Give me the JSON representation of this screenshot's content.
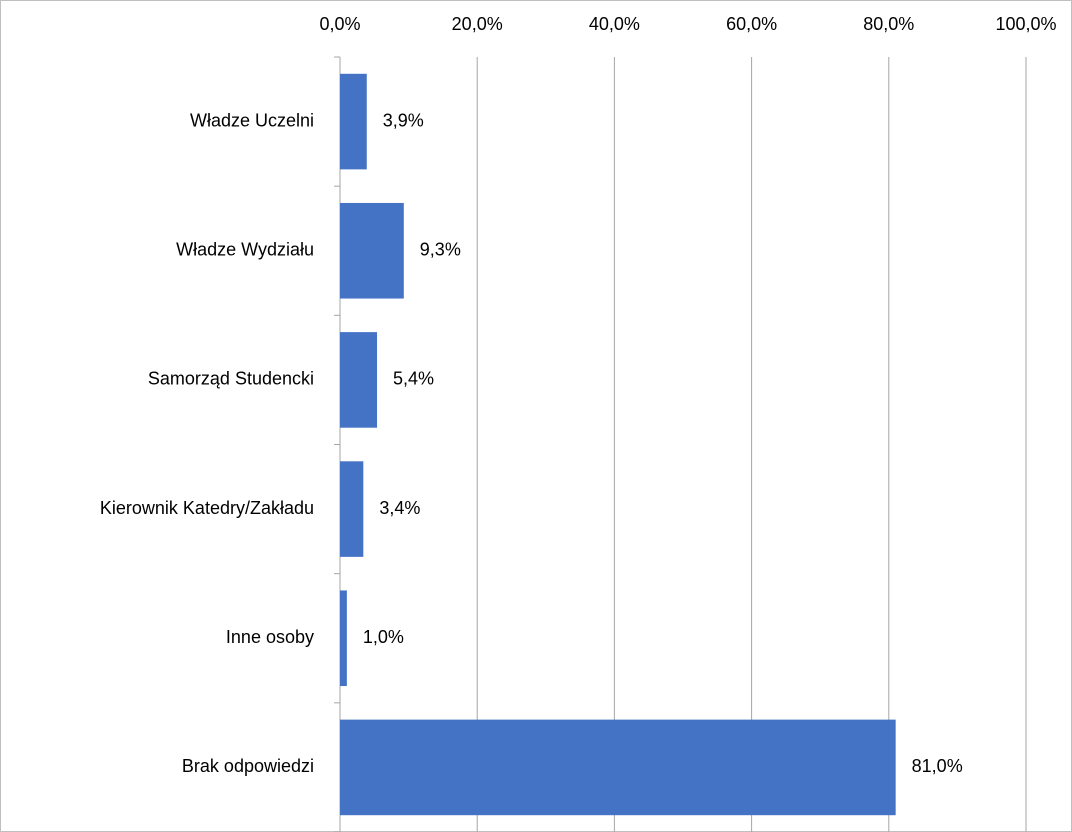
{
  "chart_data": {
    "type": "bar",
    "orientation": "horizontal",
    "categories": [
      "Władze Uczelni",
      "Władze Wydziału",
      "Samorząd Studencki",
      "Kierownik Katedry/Zakładu",
      "Inne osoby",
      "Brak odpowiedzi"
    ],
    "values": [
      3.9,
      9.3,
      5.4,
      3.4,
      1.0,
      81.0
    ],
    "value_labels": [
      "3,9%",
      "9,3%",
      "5,4%",
      "3,4%",
      "1,0%",
      "81,0%"
    ],
    "color": "#4472c4",
    "xlim": [
      0,
      100
    ],
    "xticks": [
      {
        "value": 0,
        "label": "0,0%"
      },
      {
        "value": 20,
        "label": "20,0%"
      },
      {
        "value": 40,
        "label": "40,0%"
      },
      {
        "value": 60,
        "label": "60,0%"
      },
      {
        "value": 80,
        "label": "80,0%"
      },
      {
        "value": 100,
        "label": "100,0%"
      }
    ],
    "grid": true
  }
}
